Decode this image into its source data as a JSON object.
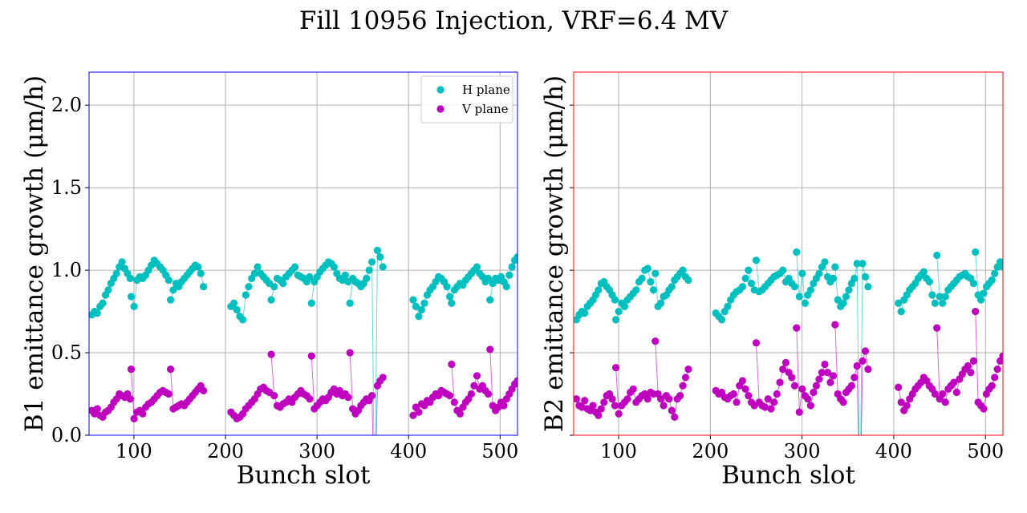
{
  "title": "Fill 10956 Injection, VRF=6.4 MV",
  "colors": {
    "h_plane": "#00bfbf",
    "v_plane": "#bf00bf",
    "b1_frame": "#0000ff",
    "b2_frame": "#ff0000",
    "grid": "#b0b0b0"
  },
  "chart_data": [
    {
      "type": "scatter",
      "mode": "markers+lines",
      "xlabel": "Bunch slot",
      "ylabel": "B1 emittance growth (μm/h)",
      "xlim": [
        51,
        519
      ],
      "ylim": [
        0,
        2.2
      ],
      "xticks": [
        "100",
        "200",
        "300",
        "400",
        "500"
      ],
      "yticks": [
        "0.0",
        "0.5",
        "1.0",
        "1.5",
        "2.0"
      ],
      "show_ytick_labels": true,
      "grid": true,
      "legend": {
        "position": "top-right",
        "entries": [
          "H plane",
          "V plane"
        ]
      },
      "series": [
        {
          "name": "H plane",
          "trains": [
            {
              "start": 54,
              "end": 96,
              "y": [
                0.73,
                0.75,
                0.74,
                0.78,
                0.8,
                0.85,
                0.88,
                0.92,
                0.95,
                0.98,
                1.02,
                1.05,
                1.01,
                0.98,
                0.95
              ]
            },
            {
              "start": 97,
              "end": 138,
              "y": [
                0.84,
                0.78,
                0.94,
                0.96,
                0.95,
                0.97,
                1.0,
                1.03,
                1.06,
                1.04,
                1.02,
                1.0,
                0.97,
                0.94
              ]
            },
            {
              "start": 140,
              "end": 176,
              "y": [
                0.82,
                0.88,
                0.92,
                0.9,
                0.93,
                0.95,
                0.97,
                0.99,
                1.01,
                1.03,
                1.02,
                0.98,
                0.9
              ]
            },
            {
              "start": 206,
              "end": 248,
              "y": [
                0.78,
                0.8,
                0.76,
                0.72,
                0.7,
                0.85,
                0.9,
                0.95,
                0.98,
                1.02,
                0.98,
                0.96,
                0.94,
                0.92
              ]
            },
            {
              "start": 250,
              "end": 292,
              "y": [
                0.82,
                0.9,
                0.95,
                0.94,
                0.92,
                0.96,
                0.98,
                1.0,
                1.02,
                0.97,
                0.96,
                0.95,
                0.93,
                0.96
              ]
            },
            {
              "start": 294,
              "end": 334,
              "y": [
                0.8,
                0.93,
                0.96,
                0.99,
                1.01,
                1.03,
                1.05,
                1.04,
                1.02,
                0.98,
                0.95,
                0.94,
                0.97,
                0.93
              ]
            },
            {
              "start": 336,
              "end": 372,
              "y": [
                0.8,
                0.95,
                0.93,
                0.92,
                0.9,
                0.92,
                0.95,
                1.0,
                1.05,
                -0.5,
                1.12,
                1.08,
                1.02
              ]
            },
            {
              "start": 405,
              "end": 445,
              "y": [
                0.82,
                0.78,
                0.72,
                0.76,
                0.8,
                0.85,
                0.88,
                0.9,
                0.93,
                0.96,
                0.95,
                0.93,
                0.9,
                0.84
              ]
            },
            {
              "start": 447,
              "end": 487,
              "y": [
                0.8,
                0.88,
                0.9,
                0.92,
                0.91,
                0.94,
                0.96,
                0.98,
                1.0,
                1.02,
                0.98,
                0.96,
                0.93,
                0.95
              ]
            },
            {
              "start": 489,
              "end": 519,
              "y": [
                0.82,
                0.92,
                0.95,
                0.94,
                0.96,
                0.93,
                0.9,
                0.97,
                1.02,
                1.06,
                1.08
              ]
            }
          ]
        },
        {
          "name": "V plane",
          "trains": [
            {
              "start": 54,
              "end": 96,
              "y": [
                0.15,
                0.13,
                0.16,
                0.12,
                0.11,
                0.14,
                0.15,
                0.17,
                0.2,
                0.22,
                0.25,
                0.24,
                0.23,
                0.25,
                0.22
              ]
            },
            {
              "start": 97,
              "end": 138,
              "y": [
                0.4,
                0.1,
                0.14,
                0.15,
                0.13,
                0.17,
                0.19,
                0.2,
                0.22,
                0.24,
                0.26,
                0.27,
                0.26,
                0.25
              ]
            },
            {
              "start": 140,
              "end": 176,
              "y": [
                0.4,
                0.16,
                0.17,
                0.18,
                0.19,
                0.18,
                0.2,
                0.22,
                0.24,
                0.26,
                0.28,
                0.3,
                0.27
              ]
            },
            {
              "start": 206,
              "end": 248,
              "y": [
                0.14,
                0.12,
                0.1,
                0.11,
                0.13,
                0.16,
                0.18,
                0.2,
                0.22,
                0.25,
                0.28,
                0.29,
                0.27,
                0.26
              ]
            },
            {
              "start": 250,
              "end": 292,
              "y": [
                0.49,
                0.24,
                0.18,
                0.17,
                0.19,
                0.2,
                0.22,
                0.2,
                0.23,
                0.25,
                0.27,
                0.25,
                0.24,
                0.22
              ]
            },
            {
              "start": 294,
              "end": 334,
              "y": [
                0.48,
                0.16,
                0.18,
                0.2,
                0.22,
                0.21,
                0.23,
                0.26,
                0.28,
                0.25,
                0.27,
                0.24,
                0.25,
                0.23
              ]
            },
            {
              "start": 336,
              "end": 372,
              "y": [
                0.5,
                0.16,
                0.13,
                0.15,
                0.18,
                0.2,
                0.22,
                0.21,
                0.24,
                -0.5,
                0.3,
                0.33,
                0.35
              ]
            },
            {
              "start": 405,
              "end": 445,
              "y": [
                0.12,
                0.17,
                0.14,
                0.19,
                0.18,
                0.21,
                0.2,
                0.23,
                0.25,
                0.24,
                0.27,
                0.26,
                0.25,
                0.24
              ]
            },
            {
              "start": 447,
              "end": 487,
              "y": [
                0.43,
                0.2,
                0.15,
                0.13,
                0.17,
                0.2,
                0.22,
                0.25,
                0.3,
                0.36,
                0.28,
                0.3,
                0.27,
                0.25
              ]
            },
            {
              "start": 489,
              "end": 519,
              "y": [
                0.52,
                0.18,
                0.15,
                0.17,
                0.2,
                0.18,
                0.22,
                0.25,
                0.28,
                0.31,
                0.33
              ]
            }
          ]
        }
      ]
    },
    {
      "type": "scatter",
      "mode": "markers+lines",
      "xlabel": "Bunch slot",
      "ylabel": "B2 emittance growth (μm/h)",
      "xlim": [
        51,
        519
      ],
      "ylim": [
        0,
        2.2
      ],
      "xticks": [
        "100",
        "200",
        "300",
        "400",
        "500"
      ],
      "yticks": [
        "0.0",
        "0.5",
        "1.0",
        "1.5",
        "2.0"
      ],
      "show_ytick_labels": false,
      "grid": true,
      "series": [
        {
          "name": "H plane",
          "trains": [
            {
              "start": 54,
              "end": 96,
              "y": [
                0.7,
                0.73,
                0.75,
                0.74,
                0.78,
                0.8,
                0.82,
                0.85,
                0.88,
                0.92,
                0.93,
                0.9,
                0.88,
                0.85,
                0.82
              ]
            },
            {
              "start": 97,
              "end": 138,
              "y": [
                0.7,
                0.75,
                0.8,
                0.78,
                0.82,
                0.84,
                0.86,
                0.88,
                0.93,
                0.95,
                1.0,
                1.01,
                0.93,
                0.88
              ]
            },
            {
              "start": 140,
              "end": 176,
              "y": [
                0.98,
                0.78,
                0.8,
                0.84,
                0.85,
                0.88,
                0.9,
                0.94,
                0.96,
                0.98,
                1.0,
                0.96,
                0.94
              ]
            },
            {
              "start": 206,
              "end": 248,
              "y": [
                0.74,
                0.72,
                0.7,
                0.75,
                0.78,
                0.82,
                0.85,
                0.87,
                0.88,
                0.9,
                0.95,
                1.0,
                0.92,
                0.88
              ]
            },
            {
              "start": 250,
              "end": 292,
              "y": [
                1.06,
                0.87,
                0.88,
                0.9,
                0.92,
                0.94,
                0.96,
                0.97,
                0.98,
                1.0,
                0.93,
                0.95,
                0.92,
                0.9
              ]
            },
            {
              "start": 294,
              "end": 334,
              "y": [
                1.11,
                0.84,
                0.98,
                0.8,
                0.85,
                0.88,
                0.92,
                0.95,
                0.98,
                1.02,
                1.05,
                0.96,
                0.93,
                0.95
              ]
            },
            {
              "start": 336,
              "end": 372,
              "y": [
                1.02,
                0.82,
                0.78,
                0.8,
                0.84,
                0.88,
                0.92,
                0.95,
                1.04,
                -0.5,
                1.04,
                0.96,
                0.9
              ]
            },
            {
              "start": 405,
              "end": 445,
              "y": [
                0.8,
                0.75,
                0.82,
                0.85,
                0.88,
                0.9,
                0.92,
                0.95,
                0.97,
                0.99,
                0.95,
                0.93,
                0.85,
                0.8
              ]
            },
            {
              "start": 447,
              "end": 487,
              "y": [
                1.09,
                0.84,
                0.8,
                0.84,
                0.88,
                0.9,
                0.92,
                0.94,
                0.96,
                0.97,
                0.98,
                0.96,
                0.95,
                0.92
              ]
            },
            {
              "start": 489,
              "end": 519,
              "y": [
                1.11,
                0.85,
                0.82,
                0.86,
                0.9,
                0.92,
                0.94,
                0.98,
                1.02,
                1.05,
                1.02
              ]
            }
          ]
        },
        {
          "name": "V plane",
          "trains": [
            {
              "start": 54,
              "end": 96,
              "y": [
                0.22,
                0.18,
                0.17,
                0.21,
                0.16,
                0.15,
                0.18,
                0.14,
                0.12,
                0.16,
                0.2,
                0.24,
                0.25,
                0.22,
                0.18
              ]
            },
            {
              "start": 97,
              "end": 138,
              "y": [
                0.41,
                0.13,
                0.18,
                0.2,
                0.22,
                0.26,
                0.28,
                0.2,
                0.22,
                0.24,
                0.25,
                0.22,
                0.26,
                0.25
              ]
            },
            {
              "start": 140,
              "end": 176,
              "y": [
                0.57,
                0.25,
                0.22,
                0.18,
                0.24,
                0.22,
                0.15,
                0.11,
                0.22,
                0.24,
                0.3,
                0.35,
                0.4
              ]
            },
            {
              "start": 206,
              "end": 248,
              "y": [
                0.27,
                0.25,
                0.26,
                0.23,
                0.22,
                0.24,
                0.25,
                0.2,
                0.3,
                0.33,
                0.28,
                0.24,
                0.2,
                0.18
              ]
            },
            {
              "start": 250,
              "end": 292,
              "y": [
                0.56,
                0.2,
                0.18,
                0.17,
                0.22,
                0.16,
                0.2,
                0.25,
                0.32,
                0.4,
                0.44,
                0.38,
                0.35,
                0.3
              ]
            },
            {
              "start": 294,
              "end": 334,
              "y": [
                0.65,
                0.14,
                0.28,
                0.24,
                0.22,
                0.18,
                0.26,
                0.3,
                0.34,
                0.38,
                0.43,
                0.38,
                0.32,
                0.36
              ]
            },
            {
              "start": 336,
              "end": 372,
              "y": [
                0.67,
                0.25,
                0.22,
                0.2,
                0.26,
                0.28,
                0.3,
                0.35,
                0.42,
                -0.5,
                0.45,
                0.51,
                0.4
              ]
            },
            {
              "start": 405,
              "end": 445,
              "y": [
                0.29,
                0.2,
                0.15,
                0.18,
                0.22,
                0.25,
                0.28,
                0.3,
                0.32,
                0.35,
                0.33,
                0.3,
                0.28,
                0.25
              ]
            },
            {
              "start": 447,
              "end": 487,
              "y": [
                0.65,
                0.22,
                0.25,
                0.2,
                0.28,
                0.3,
                0.32,
                0.26,
                0.34,
                0.37,
                0.4,
                0.42,
                0.38,
                0.45
              ]
            },
            {
              "start": 489,
              "end": 519,
              "y": [
                0.75,
                0.2,
                0.18,
                0.16,
                0.25,
                0.28,
                0.3,
                0.35,
                0.4,
                0.45,
                0.48
              ]
            }
          ]
        }
      ]
    }
  ]
}
